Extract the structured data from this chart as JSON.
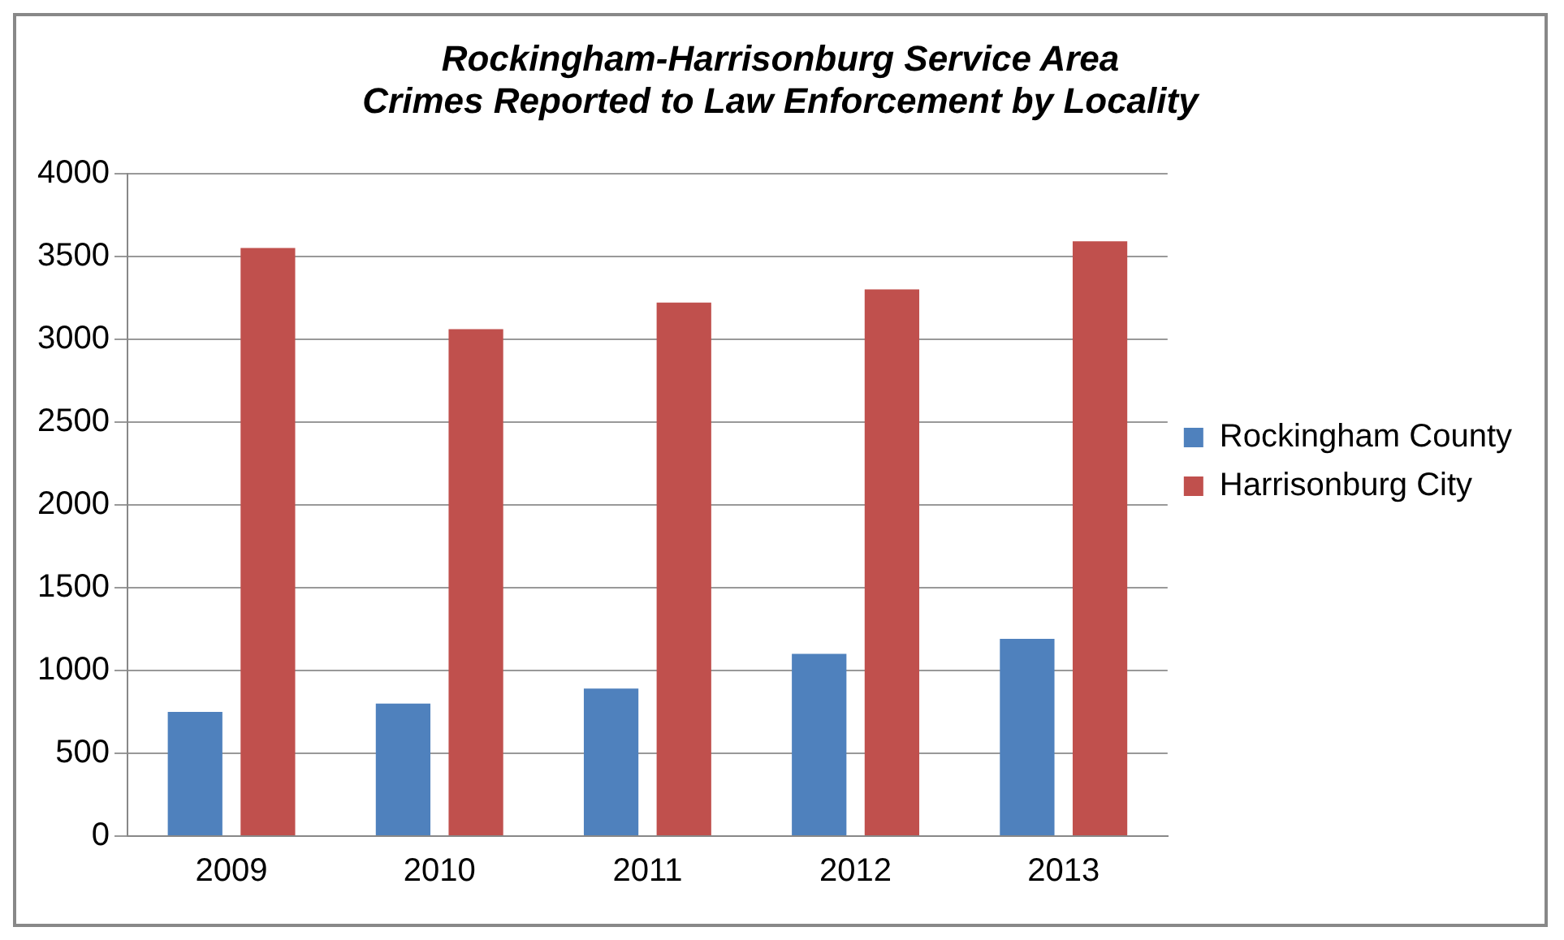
{
  "chart_data": {
    "type": "bar",
    "title": "Rockingham-Harrisonburg Service Area\nCrimes Reported to Law Enforcement by Locality",
    "categories": [
      "2009",
      "2010",
      "2011",
      "2012",
      "2013"
    ],
    "series": [
      {
        "name": "Rockingham County",
        "color": "#4f81bd",
        "values": [
          750,
          800,
          890,
          1100,
          1190
        ]
      },
      {
        "name": "Harrisonburg City",
        "color": "#c0504d",
        "values": [
          3550,
          3060,
          3220,
          3300,
          3590
        ]
      }
    ],
    "ylim": [
      0,
      4000
    ],
    "yticks": [
      0,
      500,
      1000,
      1500,
      2000,
      2500,
      3000,
      3500,
      4000
    ],
    "grid": "y",
    "legend": "right"
  }
}
